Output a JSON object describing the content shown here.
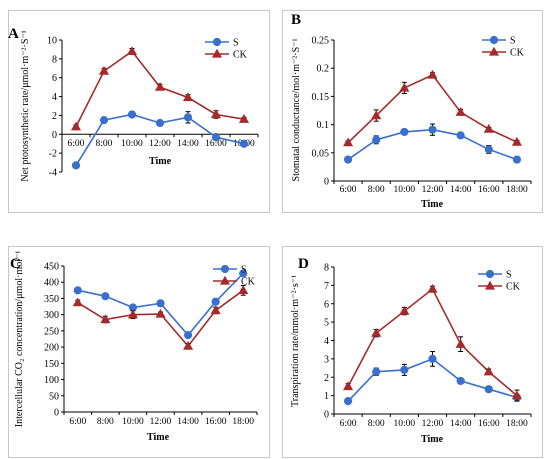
{
  "chart_data": [
    {
      "type": "line",
      "panel_label": "A",
      "ylabel": "Net ptotosynthetic rate/μmol·m⁻²·S⁻¹",
      "xlabel": "Time",
      "categories": [
        "6:00",
        "8:00",
        "10:00",
        "12:00",
        "14:00",
        "16:00",
        "18:00"
      ],
      "ylim": [
        -4,
        10
      ],
      "yticks": [
        -4,
        -2,
        0,
        2,
        4,
        6,
        8,
        10
      ],
      "series": [
        {
          "name": "S",
          "color": "#3a6fce",
          "marker": "circle",
          "values": [
            -3.3,
            1.5,
            2.1,
            1.2,
            1.8,
            -0.3,
            -1.0
          ],
          "errors": [
            0.2,
            0.2,
            0.3,
            0.2,
            0.6,
            0.2,
            0.2
          ]
        },
        {
          "name": "CK",
          "color": "#a52a2a",
          "marker": "triangle",
          "values": [
            0.8,
            6.7,
            8.8,
            5.0,
            3.9,
            2.1,
            1.6
          ],
          "errors": [
            0.2,
            0.3,
            0.3,
            0.3,
            0.3,
            0.4,
            0.2
          ]
        }
      ]
    },
    {
      "type": "line",
      "panel_label": "B",
      "ylabel": "Stomatal conductance/mol·m⁻²·S⁻¹",
      "xlabel": "Time",
      "categories": [
        "6:00",
        "8:00",
        "10:00",
        "12:00",
        "14:00",
        "16:00",
        "18:00"
      ],
      "ylim": [
        0,
        0.25
      ],
      "yticks": [
        0,
        0.05,
        0.1,
        0.15,
        0.2,
        0.25
      ],
      "ytick_labels": [
        "0",
        "0.05",
        "0.1",
        "0.15",
        "0.2",
        "0.25"
      ],
      "series": [
        {
          "name": "S",
          "color": "#3a6fce",
          "marker": "circle",
          "values": [
            0.038,
            0.073,
            0.087,
            0.091,
            0.081,
            0.056,
            0.038
          ],
          "errors": [
            0.002,
            0.007,
            0.003,
            0.01,
            0.003,
            0.007,
            0.003
          ]
        },
        {
          "name": "CK",
          "color": "#a52a2a",
          "marker": "triangle",
          "values": [
            0.068,
            0.116,
            0.165,
            0.188,
            0.122,
            0.092,
            0.069
          ],
          "errors": [
            0.003,
            0.01,
            0.01,
            0.004,
            0.005,
            0.003,
            0.003
          ]
        }
      ]
    },
    {
      "type": "line",
      "panel_label": "C",
      "ylabel": "Intercellular CO₂ concentration/μmol·mol⁻¹",
      "xlabel": "Time",
      "categories": [
        "6:00",
        "8:00",
        "10:00",
        "12:00",
        "14:00",
        "16:00",
        "18:00"
      ],
      "ylim": [
        0,
        450
      ],
      "yticks": [
        0,
        50,
        100,
        150,
        200,
        250,
        300,
        350,
        400,
        450
      ],
      "series": [
        {
          "name": "S",
          "color": "#3a6fce",
          "marker": "circle",
          "values": [
            375,
            357,
            322,
            335,
            237,
            340,
            427
          ],
          "errors": [
            8,
            6,
            6,
            6,
            6,
            8,
            8
          ]
        },
        {
          "name": "CK",
          "color": "#a52a2a",
          "marker": "triangle",
          "values": [
            337,
            285,
            300,
            302,
            203,
            313,
            375
          ],
          "errors": [
            8,
            10,
            12,
            6,
            8,
            10,
            15
          ]
        }
      ]
    },
    {
      "type": "line",
      "panel_label": "D",
      "ylabel": "Transpiration rate/mmol·m⁻²·s⁻¹",
      "xlabel": "Time",
      "categories": [
        "6:00",
        "8:00",
        "10:00",
        "12:00",
        "14:00",
        "16:00",
        "18:00"
      ],
      "ylim": [
        0,
        8
      ],
      "yticks": [
        0,
        1,
        2,
        3,
        4,
        5,
        6,
        7,
        8
      ],
      "series": [
        {
          "name": "S",
          "color": "#3a6fce",
          "marker": "circle",
          "values": [
            0.7,
            2.3,
            2.4,
            3.0,
            1.8,
            1.35,
            0.9
          ],
          "errors": [
            0.1,
            0.2,
            0.3,
            0.4,
            0.1,
            0.1,
            0.1
          ]
        },
        {
          "name": "CK",
          "color": "#a52a2a",
          "marker": "triangle",
          "values": [
            1.5,
            4.4,
            5.6,
            6.8,
            3.8,
            2.3,
            1.0
          ],
          "errors": [
            0.15,
            0.2,
            0.2,
            0.15,
            0.4,
            0.15,
            0.3
          ]
        }
      ]
    }
  ]
}
